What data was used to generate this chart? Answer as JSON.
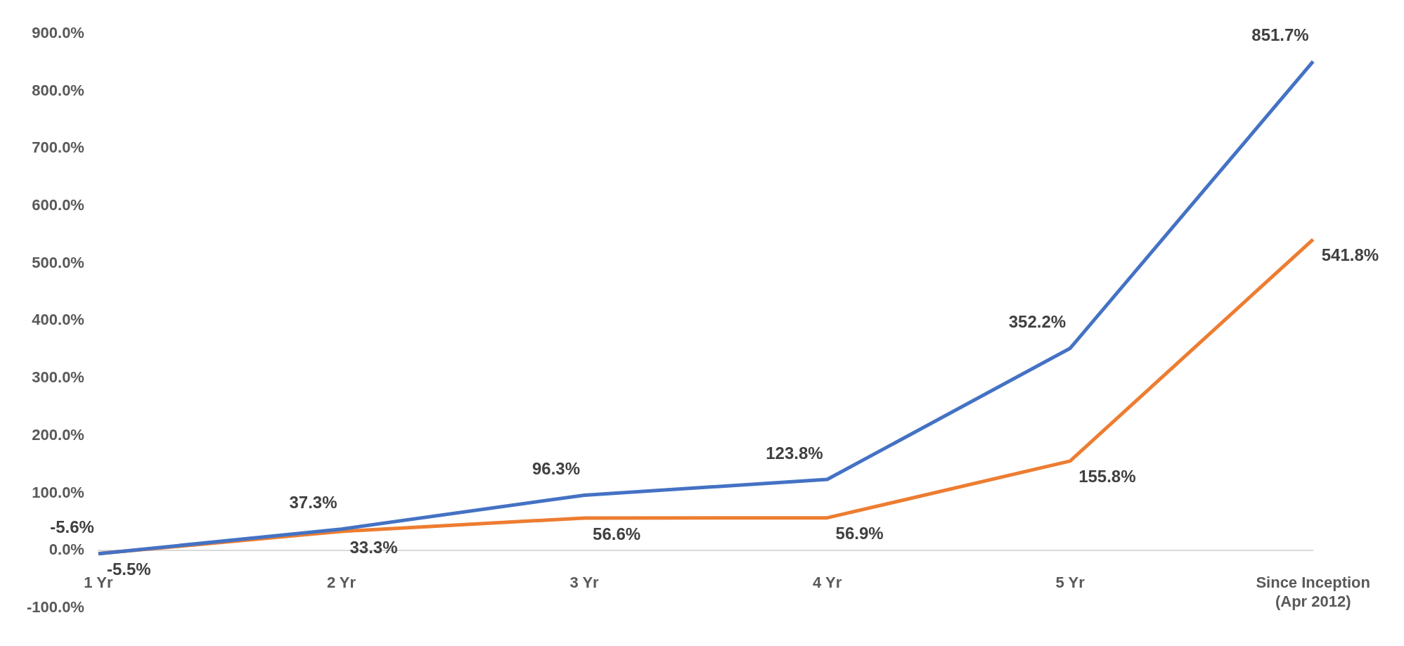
{
  "chart_data": {
    "type": "line",
    "categories": [
      "1 Yr",
      "2 Yr",
      "3 Yr",
      "4 Yr",
      "5 Yr",
      "Since Inception\n(Apr 2012)"
    ],
    "series": [
      {
        "color": "#4472c4",
        "values": [
          -5.6,
          37.3,
          96.3,
          123.8,
          352.2,
          851.7
        ],
        "value_labels": [
          "-5.6%",
          "37.3%",
          "96.3%",
          "123.8%",
          "352.2%",
          "851.7%"
        ]
      },
      {
        "color": "#ed7d31",
        "values": [
          -5.5,
          33.3,
          56.6,
          56.9,
          155.8,
          541.8
        ],
        "value_labels": [
          "-5.5%",
          "33.3%",
          "56.6%",
          "56.9%",
          "155.8%",
          "541.8%"
        ]
      }
    ],
    "ylim": [
      -100,
      900
    ],
    "yticks": [
      {
        "value": -100,
        "label": "-100.0%"
      },
      {
        "value": 0,
        "label": "0.0%"
      },
      {
        "value": 100,
        "label": "100.0%"
      },
      {
        "value": 200,
        "label": "200.0%"
      },
      {
        "value": 300,
        "label": "300.0%"
      },
      {
        "value": 400,
        "label": "400.0%"
      },
      {
        "value": 500,
        "label": "500.0%"
      },
      {
        "value": 600,
        "label": "600.0%"
      },
      {
        "value": 700,
        "label": "700.0%"
      },
      {
        "value": 800,
        "label": "800.0%"
      },
      {
        "value": 900,
        "label": "900.0%"
      }
    ],
    "grid": false,
    "legend": false
  }
}
